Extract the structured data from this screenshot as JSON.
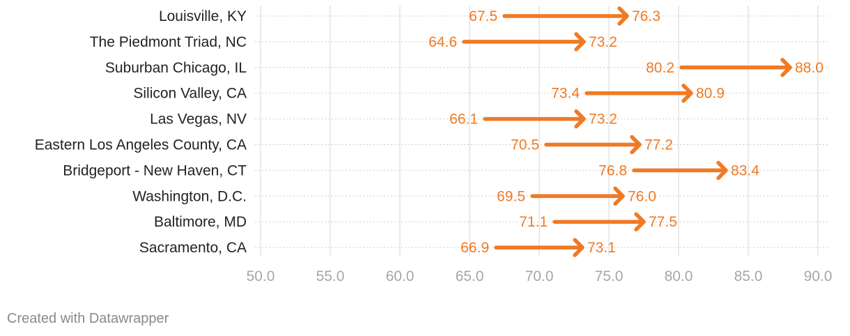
{
  "chart_data": {
    "type": "arrow",
    "categories": [
      "Louisville, KY",
      "The Piedmont Triad, NC",
      "Suburban Chicago, IL",
      "Silicon Valley, CA",
      "Las Vegas, NV",
      "Eastern Los Angeles County, CA",
      "Bridgeport - New Haven, CT",
      "Washington, D.C.",
      "Baltimore, MD",
      "Sacramento, CA"
    ],
    "start": [
      67.5,
      64.6,
      80.2,
      73.4,
      66.1,
      70.5,
      76.8,
      69.5,
      71.1,
      66.9
    ],
    "end": [
      76.3,
      73.2,
      88.0,
      80.9,
      73.2,
      77.2,
      83.4,
      76.0,
      77.5,
      73.1
    ],
    "start_labels": [
      "67.5",
      "64.6",
      "80.2",
      "73.4",
      "66.1",
      "70.5",
      "76.8",
      "69.5",
      "71.1",
      "66.9"
    ],
    "end_labels": [
      "76.3",
      "73.2",
      "88.0",
      "80.9",
      "73.2",
      "77.2",
      "83.4",
      "76.0",
      "77.5",
      "73.1"
    ],
    "x_ticks": [
      50,
      55,
      60,
      65,
      70,
      75,
      80,
      85,
      90
    ],
    "x_tick_labels": [
      "50.0",
      "55.0",
      "60.0",
      "65.0",
      "70.0",
      "75.0",
      "80.0",
      "85.0",
      "90.0"
    ],
    "xlim": [
      49.8,
      90.8
    ],
    "grid": true,
    "colors": {
      "arrow": "#f07a23",
      "label": "#f07a23",
      "category": "#222222",
      "tick": "#a6a6a6",
      "grid": "#dddddd",
      "row_line": "#cccccc"
    }
  },
  "footer": {
    "text": "Created with Datawrapper"
  }
}
